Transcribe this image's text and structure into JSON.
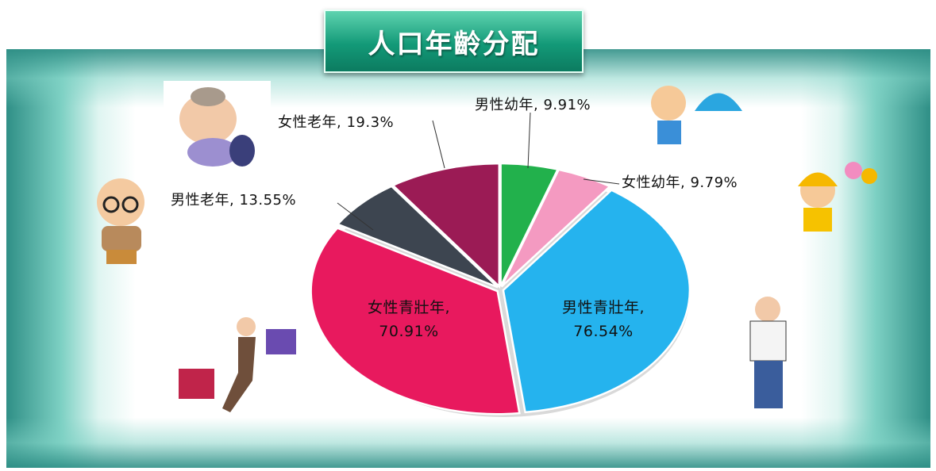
{
  "chart_data": {
    "type": "pie",
    "title": "人口年齡分配",
    "values": [
      9.91,
      9.79,
      76.54,
      70.91,
      13.55,
      19.3
    ],
    "value_labels": [
      "男性幼年, 9.91%",
      "女性幼年, 9.79%",
      "男性青壯年,\n76.54%",
      "女性青壯年,\n70.91%",
      "男性老年, 13.55%",
      "女性老年, 19.3%"
    ],
    "colors": [
      "#22b14c",
      "#f49ac1",
      "#25b3ee",
      "#e8195e",
      "#3d4550",
      "#9b1b55"
    ],
    "start_angle": 90,
    "direction": "clockwise"
  }
}
